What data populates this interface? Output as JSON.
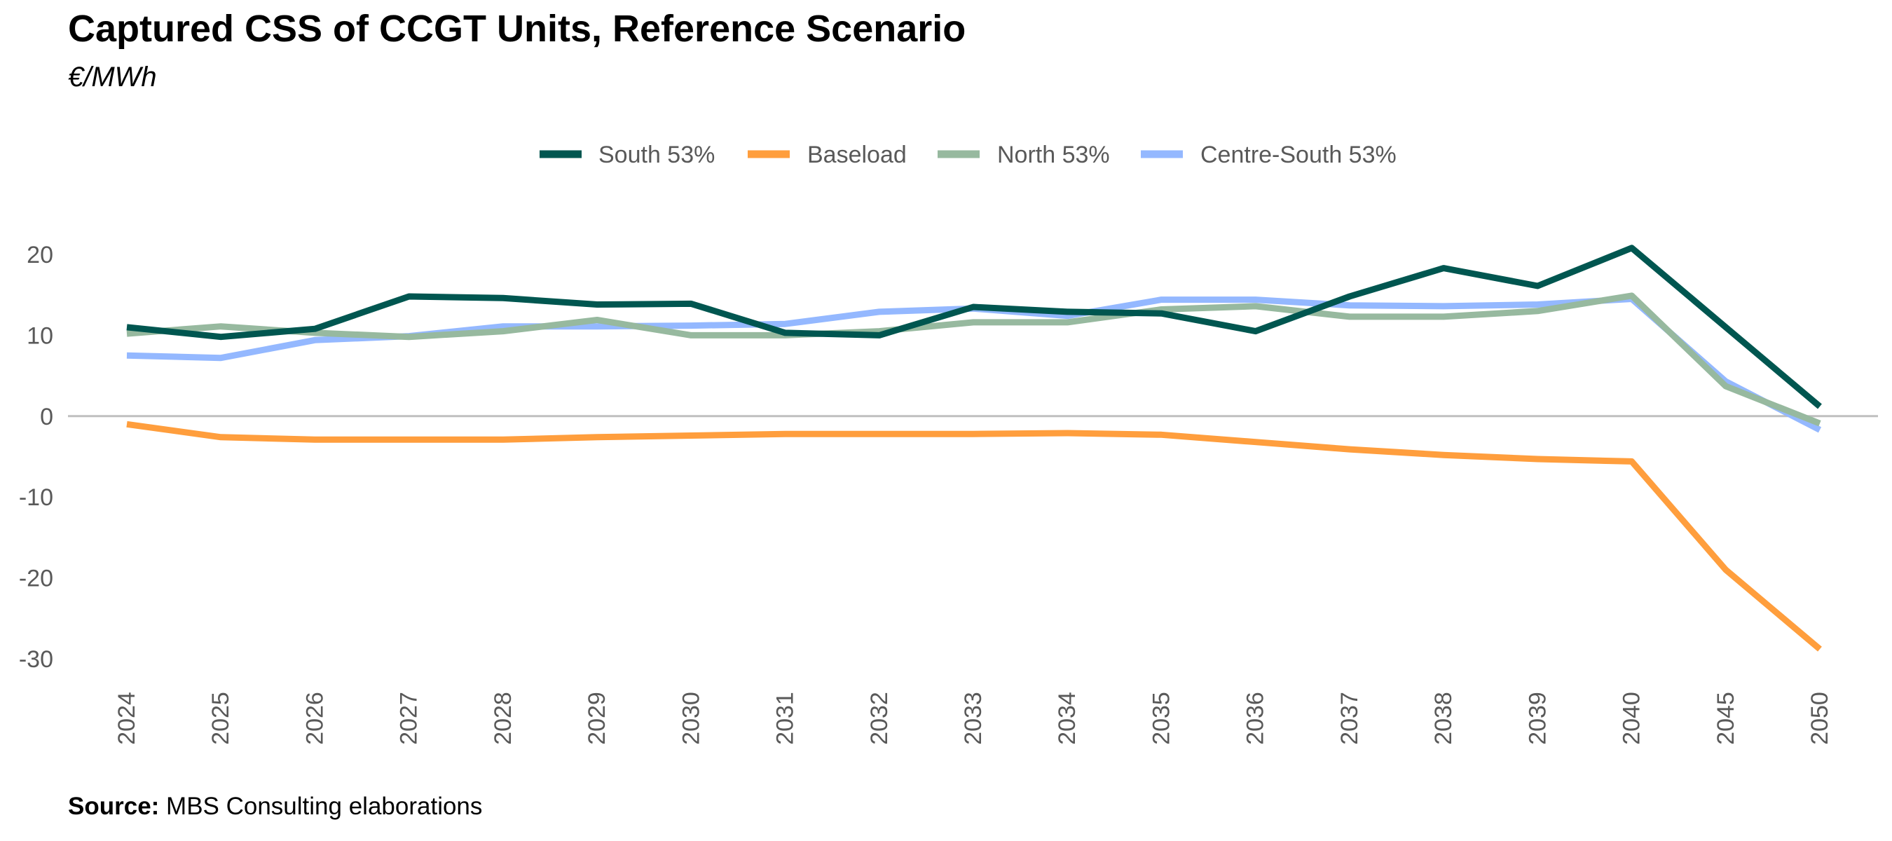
{
  "title": "Captured CSS of CCGT Units, Reference Scenario",
  "subtitle": "€/MWh",
  "source": {
    "label": "Source:",
    "text": " MBS Consulting elaborations"
  },
  "chart_data": {
    "type": "line",
    "categories": [
      "2024",
      "2025",
      "2026",
      "2027",
      "2028",
      "2029",
      "2030",
      "2031",
      "2032",
      "2033",
      "2034",
      "2035",
      "2036",
      "2037",
      "2038",
      "2039",
      "2040",
      "2045",
      "2050"
    ],
    "ylim": [
      -30,
      20
    ],
    "yticks": [
      20,
      10,
      0,
      -10,
      -20,
      -30
    ],
    "grid": false,
    "legend_position": "top-center",
    "series": [
      {
        "name": "South 53%",
        "color": "#005650",
        "values": [
          11.0,
          9.8,
          10.8,
          14.8,
          14.6,
          13.8,
          13.9,
          10.3,
          10.0,
          13.5,
          12.9,
          12.7,
          10.5,
          14.8,
          18.3,
          16.1,
          20.8,
          11.0,
          1.2
        ]
      },
      {
        "name": "Baseload",
        "color": "#FF9E3D",
        "values": [
          -1.0,
          -2.6,
          -2.9,
          -2.9,
          -2.9,
          -2.6,
          -2.4,
          -2.2,
          -2.2,
          -2.2,
          -2.1,
          -2.3,
          -3.2,
          -4.1,
          -4.8,
          -5.3,
          -5.6,
          -19.0,
          -28.8
        ]
      },
      {
        "name": "North 53%",
        "color": "#97B99F",
        "values": [
          10.2,
          11.1,
          10.3,
          9.8,
          10.5,
          11.9,
          10.0,
          10.0,
          10.5,
          11.6,
          11.6,
          13.2,
          13.6,
          12.3,
          12.3,
          13.0,
          14.9,
          3.7,
          -0.9
        ]
      },
      {
        "name": "Centre-South 53%",
        "color": "#94B8FF",
        "values": [
          7.5,
          7.2,
          9.4,
          9.9,
          11.1,
          11.1,
          11.2,
          11.4,
          12.9,
          13.3,
          12.4,
          14.4,
          14.4,
          13.7,
          13.6,
          13.8,
          14.5,
          4.3,
          -1.7
        ]
      }
    ]
  }
}
